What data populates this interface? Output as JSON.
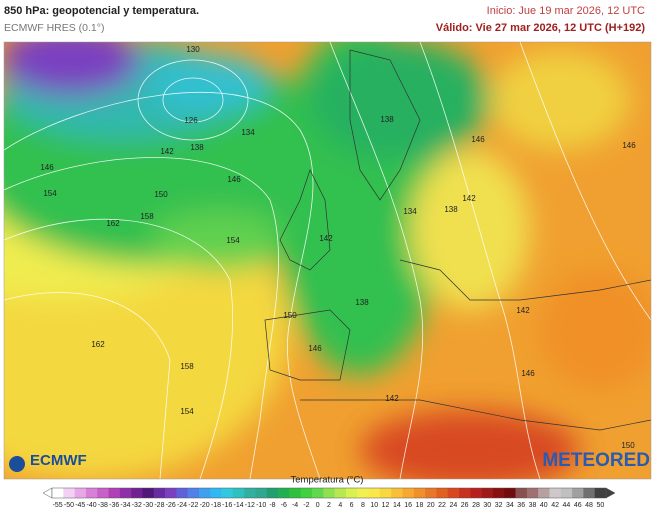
{
  "header": {
    "title": "850 hPa: geopotencial y temperatura.",
    "model": "ECMWF HRES (0.1°)",
    "init": "Inicio: Jue 19 mar 2026, 12 UTC",
    "valid": "Válido: Vie 27 mar 2026, 12 UTC (H+192)"
  },
  "map": {
    "contour_labels": [
      130,
      126,
      134,
      138,
      142,
      146,
      146,
      150,
      154,
      158,
      162,
      154,
      142,
      138,
      134,
      138,
      142,
      146,
      146,
      150,
      146,
      138,
      142,
      146,
      162,
      158,
      154,
      142,
      150
    ]
  },
  "logos": {
    "left": "ECMWF",
    "right": "METEORED"
  },
  "colorbar": {
    "title": "Temperatura (°C)",
    "ticks": [
      -55,
      -50,
      -45,
      -40,
      -38,
      -36,
      -34,
      -32,
      -30,
      -28,
      -26,
      -24,
      -22,
      -20,
      -18,
      -16,
      -14,
      -12,
      -10,
      -8,
      -6,
      -4,
      -2,
      0,
      2,
      4,
      6,
      8,
      10,
      12,
      14,
      16,
      18,
      20,
      22,
      24,
      26,
      28,
      30,
      32,
      34,
      36,
      38,
      40,
      42,
      44,
      46,
      48,
      50
    ],
    "colors": [
      "#ffffff",
      "#f5d0f5",
      "#e8a8e8",
      "#d880d8",
      "#c860c8",
      "#b040b8",
      "#9030a8",
      "#702090",
      "#501878",
      "#6a2ba0",
      "#7a40c0",
      "#6060d8",
      "#5080e8",
      "#40a0f0",
      "#30b8f0",
      "#30c8e0",
      "#30c0c0",
      "#30b0a0",
      "#30a890",
      "#20a070",
      "#20b050",
      "#30c040",
      "#40d040",
      "#60d850",
      "#90e050",
      "#b8e850",
      "#d8f050",
      "#f0f050",
      "#f8e848",
      "#f8d840",
      "#f8c038",
      "#f8a830",
      "#f09028",
      "#e87828",
      "#e06020",
      "#d84820",
      "#c83020",
      "#b82020",
      "#a01818",
      "#881010",
      "#700c0c",
      "#8a5050",
      "#a07070",
      "#b8a0a0",
      "#d0c8c8",
      "#c0c0c0",
      "#a0a0a0",
      "#707070",
      "#404040"
    ]
  }
}
